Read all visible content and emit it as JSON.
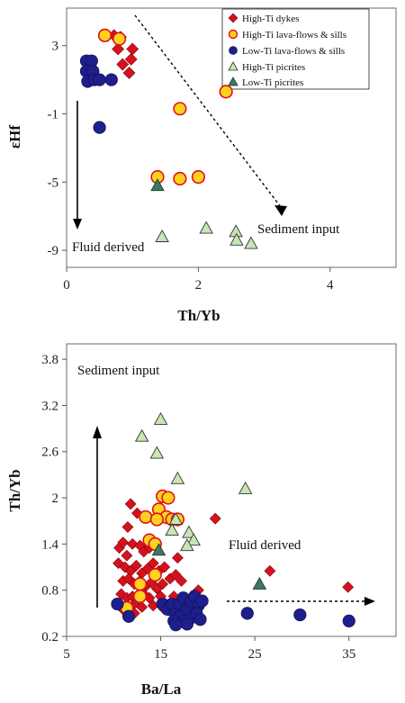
{
  "colors": {
    "high_ti_dykes": "#d8101e",
    "high_ti_lava": "#ffd21e",
    "high_ti_lava_edge": "#e0101e",
    "low_ti_lava": "#1e1e8c",
    "high_ti_picrites": "#c8e6b4",
    "low_ti_picrites": "#3c7864"
  },
  "chart_data": [
    {
      "type": "scatter",
      "xlabel": "Th/Yb",
      "ylabel": "εHf",
      "xlim": [
        0,
        5
      ],
      "ylim": [
        -10,
        5.2
      ],
      "xticks": [
        "0",
        "2",
        "4"
      ],
      "xtick_values": [
        0,
        2,
        4
      ],
      "yticks": [
        "3",
        "-1",
        "-5",
        "-9"
      ],
      "ytick_values": [
        3,
        -1,
        -5,
        -9
      ],
      "legend": {
        "position": "top-right",
        "entries": [
          "High-Ti dykes",
          "High-Ti lava-flows & sills",
          "Low-Ti lava-flows & sills",
          "High-Ti picrites",
          "Low-Ti picrites"
        ]
      },
      "annotations": {
        "fluid": "Fluid derived",
        "sediment": "Sediment input"
      },
      "series": [
        {
          "name": "High-Ti dykes",
          "key": "high_ti_dykes",
          "marker": "diamond",
          "points": [
            [
              0.72,
              3.6
            ],
            [
              0.82,
              3.5
            ],
            [
              0.78,
              2.8
            ],
            [
              1.0,
              2.8
            ],
            [
              0.98,
              2.2
            ],
            [
              0.85,
              1.9
            ],
            [
              0.95,
              1.4
            ]
          ]
        },
        {
          "name": "High-Ti lava-flows & sills",
          "key": "high_ti_lava",
          "marker": "circle",
          "points": [
            [
              0.58,
              3.6
            ],
            [
              0.8,
              3.4
            ],
            [
              1.72,
              -0.7
            ],
            [
              2.42,
              0.3
            ],
            [
              1.38,
              -4.7
            ],
            [
              1.72,
              -4.8
            ],
            [
              2.0,
              -4.7
            ]
          ]
        },
        {
          "name": "Low-Ti lava-flows & sills",
          "key": "low_ti_lava",
          "marker": "circle",
          "points": [
            [
              0.3,
              2.1
            ],
            [
              0.38,
              2.1
            ],
            [
              0.3,
              1.5
            ],
            [
              0.4,
              1.5
            ],
            [
              0.32,
              0.9
            ],
            [
              0.42,
              1.0
            ],
            [
              0.5,
              1.0
            ],
            [
              0.68,
              1.0
            ],
            [
              0.5,
              -1.8
            ]
          ]
        },
        {
          "name": "High-Ti picrites",
          "key": "high_ti_picrites",
          "marker": "triangle",
          "points": [
            [
              1.45,
              -8.2
            ],
            [
              2.12,
              -7.7
            ],
            [
              2.57,
              -7.9
            ],
            [
              2.58,
              -8.4
            ],
            [
              2.8,
              -8.6
            ]
          ]
        },
        {
          "name": "Low-Ti picrites",
          "key": "low_ti_picrites",
          "marker": "triangle",
          "points": [
            [
              1.38,
              -5.2
            ]
          ]
        }
      ]
    },
    {
      "type": "scatter",
      "xlabel": "Ba/La",
      "ylabel": "Th/Yb",
      "xlim": [
        5,
        40
      ],
      "ylim": [
        0.2,
        4.0
      ],
      "xticks": [
        "5",
        "15",
        "25",
        "35"
      ],
      "xtick_values": [
        5,
        15,
        25,
        35
      ],
      "yticks": [
        "0.2",
        "0.8",
        "1.4",
        "2",
        "2.6",
        "3.2",
        "3.8"
      ],
      "ytick_values": [
        0.2,
        0.8,
        1.4,
        2.0,
        2.6,
        3.2,
        3.8
      ],
      "annotations": {
        "sediment": "Sediment input",
        "fluid": "Fluid derived"
      },
      "series": [
        {
          "name": "High-Ti dykes",
          "key": "high_ti_dykes",
          "marker": "diamond",
          "points": [
            [
              11.8,
              1.92
            ],
            [
              12.5,
              1.8
            ],
            [
              11.5,
              1.62
            ],
            [
              10.6,
              1.35
            ],
            [
              11.0,
              1.42
            ],
            [
              11.4,
              1.25
            ],
            [
              12.0,
              1.4
            ],
            [
              12.8,
              1.38
            ],
            [
              13.2,
              1.3
            ],
            [
              13.8,
              1.35
            ],
            [
              10.5,
              1.15
            ],
            [
              11.2,
              1.1
            ],
            [
              11.8,
              1.05
            ],
            [
              12.4,
              1.12
            ],
            [
              13.0,
              1.02
            ],
            [
              13.6,
              1.08
            ],
            [
              14.2,
              1.15
            ],
            [
              14.8,
              1.05
            ],
            [
              15.4,
              1.1
            ],
            [
              11.0,
              0.92
            ],
            [
              11.6,
              0.95
            ],
            [
              12.2,
              0.88
            ],
            [
              12.8,
              0.92
            ],
            [
              13.4,
              0.85
            ],
            [
              14.0,
              0.9
            ],
            [
              14.6,
              0.82
            ],
            [
              15.2,
              0.88
            ],
            [
              16.0,
              0.95
            ],
            [
              16.6,
              1.0
            ],
            [
              17.2,
              0.92
            ],
            [
              10.8,
              0.75
            ],
            [
              11.4,
              0.7
            ],
            [
              12.0,
              0.72
            ],
            [
              12.6,
              0.68
            ],
            [
              13.2,
              0.75
            ],
            [
              13.8,
              0.7
            ],
            [
              15.0,
              0.72
            ],
            [
              16.4,
              0.72
            ],
            [
              17.6,
              0.7
            ],
            [
              19.0,
              0.8
            ],
            [
              11.0,
              0.55
            ],
            [
              12.0,
              0.6
            ],
            [
              13.0,
              0.58
            ],
            [
              14.2,
              0.6
            ],
            [
              15.4,
              0.55
            ],
            [
              17.8,
              0.55
            ],
            [
              12.2,
              0.5
            ],
            [
              16.8,
              1.22
            ],
            [
              20.8,
              1.73
            ],
            [
              26.6,
              1.05
            ],
            [
              34.9,
              0.84
            ]
          ]
        },
        {
          "name": "High-Ti lava-flows & sills",
          "key": "high_ti_lava",
          "marker": "circle",
          "points": [
            [
              15.2,
              2.02
            ],
            [
              15.8,
              2.0
            ],
            [
              14.8,
              1.85
            ],
            [
              15.6,
              1.75
            ],
            [
              13.4,
              1.75
            ],
            [
              14.6,
              1.72
            ],
            [
              16.2,
              1.72
            ],
            [
              16.8,
              1.72
            ],
            [
              13.8,
              1.45
            ],
            [
              14.4,
              1.4
            ],
            [
              12.8,
              0.88
            ],
            [
              12.8,
              0.72
            ],
            [
              11.4,
              0.57
            ],
            [
              14.4,
              1.0
            ]
          ]
        },
        {
          "name": "Low-Ti lava-flows & sills",
          "key": "low_ti_lava",
          "marker": "circle",
          "points": [
            [
              10.4,
              0.62
            ],
            [
              11.6,
              0.46
            ],
            [
              15.2,
              0.62
            ],
            [
              15.8,
              0.55
            ],
            [
              16.2,
              0.62
            ],
            [
              16.6,
              0.5
            ],
            [
              17.0,
              0.62
            ],
            [
              17.4,
              0.7
            ],
            [
              17.8,
              0.55
            ],
            [
              18.2,
              0.65
            ],
            [
              18.6,
              0.72
            ],
            [
              19.0,
              0.6
            ],
            [
              17.0,
              0.45
            ],
            [
              17.6,
              0.4
            ],
            [
              18.4,
              0.45
            ],
            [
              18.8,
              0.5
            ],
            [
              16.4,
              0.4
            ],
            [
              19.4,
              0.66
            ],
            [
              19.2,
              0.42
            ],
            [
              17.8,
              0.36
            ],
            [
              16.6,
              0.35
            ],
            [
              24.2,
              0.5
            ],
            [
              29.8,
              0.48
            ],
            [
              35.0,
              0.4
            ]
          ]
        },
        {
          "name": "High-Ti picrites",
          "key": "high_ti_picrites",
          "marker": "triangle",
          "points": [
            [
              15.0,
              3.02
            ],
            [
              13.0,
              2.8
            ],
            [
              14.6,
              2.58
            ],
            [
              16.8,
              2.25
            ],
            [
              24.0,
              2.12
            ],
            [
              16.6,
              1.72
            ],
            [
              16.2,
              1.58
            ],
            [
              18.0,
              1.55
            ],
            [
              18.5,
              1.45
            ],
            [
              17.8,
              1.38
            ]
          ]
        },
        {
          "name": "Low-Ti picrites",
          "key": "low_ti_picrites",
          "marker": "triangle",
          "points": [
            [
              14.8,
              1.32
            ],
            [
              25.5,
              0.88
            ]
          ]
        }
      ]
    }
  ]
}
